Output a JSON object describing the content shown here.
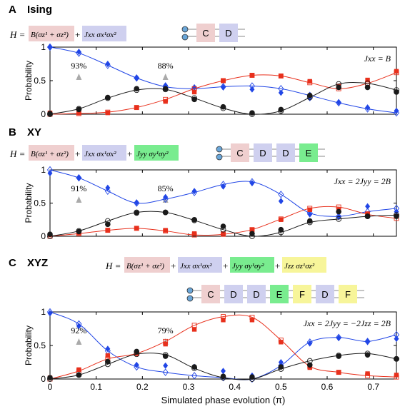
{
  "colors": {
    "black": "#1a1a1a",
    "red": "#e8301c",
    "blue": "#2146e6",
    "C": "#efcfcf",
    "D": "#cfd0ef",
    "E": "#79ec8f",
    "F": "#f7f59a",
    "qubit": "#6aa6d8"
  },
  "xlabel": "Simulated phase evolution (π)",
  "xticks": [
    "0",
    "0.1",
    "0.2",
    "0.3",
    "0.4",
    "0.5",
    "0.6",
    "0.7"
  ],
  "ylabel": "Probability",
  "yticks": [
    "0",
    "0.5",
    "1"
  ],
  "panels": [
    {
      "letter": "A",
      "name": "Ising",
      "hamiltonian": {
        "lhs": "H = ",
        "terms": [
          "B(σz¹ + σz²)",
          "Jxx σx¹σx²"
        ],
        "term_colors": [
          "C",
          "D"
        ]
      },
      "gates": [
        "C",
        "D"
      ],
      "gate_colors": [
        "C",
        "D"
      ],
      "condition": "Jxx = B",
      "fidelity_labels": [
        {
          "text": "93%",
          "x": 0.0625
        },
        {
          "text": "88%",
          "x": 0.25
        }
      ]
    },
    {
      "letter": "B",
      "name": "XY",
      "hamiltonian": {
        "lhs": "H = ",
        "terms": [
          "B(σz¹ + σz²)",
          "Jxx σx¹σx²",
          "Jyy σy¹σy²"
        ],
        "term_colors": [
          "C",
          "D",
          "E"
        ]
      },
      "gates": [
        "C",
        "D",
        "D",
        "E"
      ],
      "gate_colors": [
        "C",
        "D",
        "D",
        "E"
      ],
      "condition": "Jxx = 2Jyy = 2B",
      "fidelity_labels": [
        {
          "text": "91%",
          "x": 0.0625
        },
        {
          "text": "85%",
          "x": 0.25
        }
      ]
    },
    {
      "letter": "C",
      "name": "XYZ",
      "hamiltonian": {
        "lhs": "H = ",
        "terms": [
          "B(σz¹ + σz²)",
          "Jxx σx¹σx²",
          "Jyy σy¹σy²",
          "Jzz σz¹σz²"
        ],
        "term_colors": [
          "C",
          "D",
          "E",
          "F"
        ]
      },
      "gates": [
        "C",
        "D",
        "D",
        "E",
        "F",
        "D",
        "F"
      ],
      "gate_colors": [
        "C",
        "D",
        "D",
        "E",
        "F",
        "D",
        "F"
      ],
      "condition": "Jxx = 2Jyy = −2Jzz = 2B",
      "fidelity_labels": [
        {
          "text": "92%",
          "x": 0.0625
        },
        {
          "text": "79%",
          "x": 0.25
        }
      ]
    }
  ],
  "chart_data": [
    {
      "type": "scatter",
      "title": "Ising",
      "xlabel": "Simulated phase evolution (π)",
      "ylabel": "Probability",
      "xlim": [
        0,
        0.75
      ],
      "ylim": [
        0,
        1
      ],
      "x": [
        0,
        0.0625,
        0.125,
        0.1875,
        0.25,
        0.3125,
        0.375,
        0.4375,
        0.5,
        0.5625,
        0.625,
        0.6875,
        0.75
      ],
      "series": [
        {
          "color": "blue",
          "marker": "diamond",
          "theory": [
            1.0,
            0.91,
            0.73,
            0.54,
            0.41,
            0.38,
            0.41,
            0.42,
            0.38,
            0.28,
            0.17,
            0.08,
            0.02
          ],
          "experiment": [
            1.0,
            0.93,
            0.75,
            0.54,
            0.43,
            0.4,
            0.4,
            0.37,
            0.32,
            0.24,
            0.18,
            0.1,
            0.05
          ]
        },
        {
          "color": "red",
          "marker": "square",
          "theory": [
            0.0,
            0.01,
            0.03,
            0.1,
            0.22,
            0.38,
            0.5,
            0.58,
            0.57,
            0.47,
            0.38,
            0.46,
            0.62
          ],
          "experiment": [
            0.02,
            0.02,
            0.02,
            0.1,
            0.19,
            0.33,
            0.5,
            0.58,
            0.57,
            0.49,
            0.42,
            0.51,
            0.64
          ]
        },
        {
          "color": "black",
          "marker": "circle",
          "theory": [
            0.0,
            0.08,
            0.24,
            0.36,
            0.37,
            0.24,
            0.09,
            0.0,
            0.05,
            0.25,
            0.45,
            0.46,
            0.36
          ],
          "experiment": [
            0.01,
            0.07,
            0.25,
            0.38,
            0.38,
            0.22,
            0.11,
            0.02,
            0.07,
            0.28,
            0.4,
            0.4,
            0.33
          ]
        }
      ]
    },
    {
      "type": "scatter",
      "title": "XY",
      "xlabel": "Simulated phase evolution (π)",
      "ylabel": "Probability",
      "xlim": [
        0,
        0.75
      ],
      "ylim": [
        0,
        1
      ],
      "x": [
        0,
        0.0625,
        0.125,
        0.1875,
        0.25,
        0.3125,
        0.375,
        0.4375,
        0.5,
        0.5625,
        0.625,
        0.6875,
        0.75
      ],
      "series": [
        {
          "color": "blue",
          "marker": "diamond",
          "theory": [
            1.0,
            0.88,
            0.68,
            0.5,
            0.56,
            0.66,
            0.78,
            0.82,
            0.63,
            0.35,
            0.3,
            0.37,
            0.42
          ],
          "experiment": [
            0.95,
            0.88,
            0.73,
            0.51,
            0.59,
            0.68,
            0.75,
            0.8,
            0.53,
            0.33,
            0.29,
            0.45,
            0.37
          ]
        },
        {
          "color": "red",
          "marker": "square",
          "theory": [
            0.0,
            0.04,
            0.09,
            0.12,
            0.08,
            0.02,
            0.03,
            0.1,
            0.26,
            0.42,
            0.44,
            0.33,
            0.27
          ],
          "experiment": [
            0.02,
            0.05,
            0.09,
            0.12,
            0.09,
            0.04,
            0.04,
            0.1,
            0.25,
            0.4,
            0.4,
            0.34,
            0.3
          ]
        },
        {
          "color": "black",
          "marker": "circle",
          "theory": [
            0.0,
            0.08,
            0.23,
            0.36,
            0.36,
            0.24,
            0.1,
            0.0,
            0.06,
            0.21,
            0.26,
            0.3,
            0.32
          ],
          "experiment": [
            0.03,
            0.07,
            0.18,
            0.35,
            0.36,
            0.25,
            0.15,
            0.04,
            0.1,
            0.23,
            0.37,
            0.3,
            0.3
          ]
        }
      ]
    },
    {
      "type": "scatter",
      "title": "XYZ",
      "xlabel": "Simulated phase evolution (π)",
      "ylabel": "Probability",
      "xlim": [
        0,
        0.75
      ],
      "ylim": [
        0,
        1
      ],
      "x": [
        0,
        0.0625,
        0.125,
        0.1875,
        0.25,
        0.3125,
        0.375,
        0.4375,
        0.5,
        0.5625,
        0.625,
        0.6875,
        0.75
      ],
      "series": [
        {
          "color": "blue",
          "marker": "diamond",
          "theory": [
            1.0,
            0.82,
            0.42,
            0.18,
            0.1,
            0.05,
            0.02,
            0.0,
            0.2,
            0.55,
            0.62,
            0.56,
            0.66
          ],
          "experiment": [
            0.98,
            0.79,
            0.45,
            0.21,
            0.2,
            0.18,
            0.12,
            0.05,
            0.25,
            0.53,
            0.61,
            0.56,
            0.6
          ]
        },
        {
          "color": "red",
          "marker": "square",
          "theory": [
            0.0,
            0.12,
            0.3,
            0.38,
            0.56,
            0.8,
            0.93,
            0.92,
            0.58,
            0.19,
            0.1,
            0.05,
            0.03
          ],
          "experiment": [
            0.02,
            0.14,
            0.35,
            0.38,
            0.52,
            0.74,
            0.88,
            0.88,
            0.55,
            0.17,
            0.1,
            0.08,
            0.06
          ]
        },
        {
          "color": "black",
          "marker": "circle",
          "theory": [
            0.0,
            0.06,
            0.22,
            0.37,
            0.36,
            0.16,
            0.02,
            0.0,
            0.15,
            0.27,
            0.35,
            0.38,
            0.3
          ],
          "experiment": [
            0.02,
            0.06,
            0.26,
            0.41,
            0.34,
            0.18,
            0.04,
            0.03,
            0.18,
            0.21,
            0.34,
            0.36,
            0.3
          ]
        }
      ]
    }
  ]
}
